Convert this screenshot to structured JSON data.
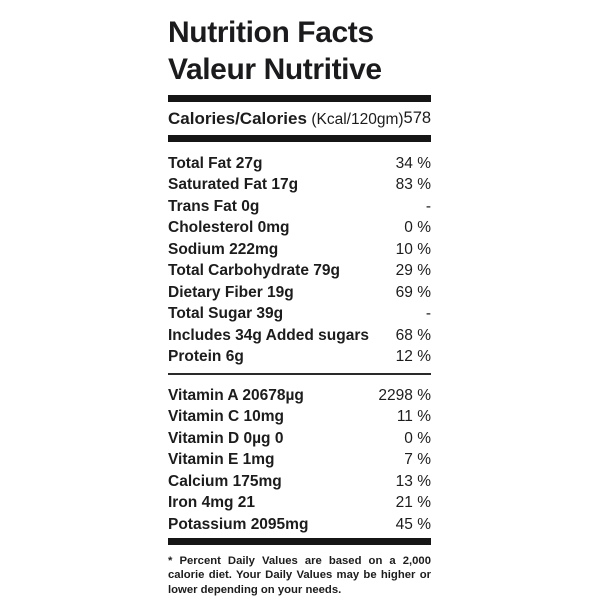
{
  "title": {
    "line1": "Nutrition Facts",
    "line2": "Valeur Nutritive"
  },
  "calories": {
    "label": "Calories/Calories",
    "unit": "(Kcal/120gm)",
    "value": "578"
  },
  "nutrients": [
    {
      "label": "Total Fat 27g",
      "dv": "34 %"
    },
    {
      "label": "Saturated Fat 17g",
      "dv": "83 %"
    },
    {
      "label": "Trans Fat 0g",
      "dv": "-"
    },
    {
      "label": "Cholesterol 0mg",
      "dv": "0 %"
    },
    {
      "label": "Sodium 222mg",
      "dv": "10 %"
    },
    {
      "label": "Total Carbohydrate 79g",
      "dv": "29 %"
    },
    {
      "label": "Dietary Fiber 19g",
      "dv": "69 %"
    },
    {
      "label": "Total Sugar 39g",
      "dv": "-"
    },
    {
      "label": "Includes 34g Added sugars",
      "dv": "68 %"
    },
    {
      "label": "Protein 6g",
      "dv": "12 %"
    }
  ],
  "micronutrients": [
    {
      "label": "Vitamin A 20678µg",
      "dv": "2298 %"
    },
    {
      "label": "Vitamin C 10mg",
      "dv": "11 %"
    },
    {
      "label": "Vitamin D 0µg 0",
      "dv": "0 %"
    },
    {
      "label": "Vitamin E 1mg",
      "dv": "7 %"
    },
    {
      "label": "Calcium 175mg",
      "dv": "13 %"
    },
    {
      "label": "Iron 4mg 21",
      "dv": "21 %"
    },
    {
      "label": "Potassium 2095mg",
      "dv": "45 %"
    }
  ],
  "footnote": "* Percent Daily Values are based on a 2,000 calorie diet. Your Daily Values may be higher or lower depending on your needs.",
  "colors": {
    "text": "#1c1c1c",
    "rule": "#161616",
    "background": "#ffffff"
  }
}
